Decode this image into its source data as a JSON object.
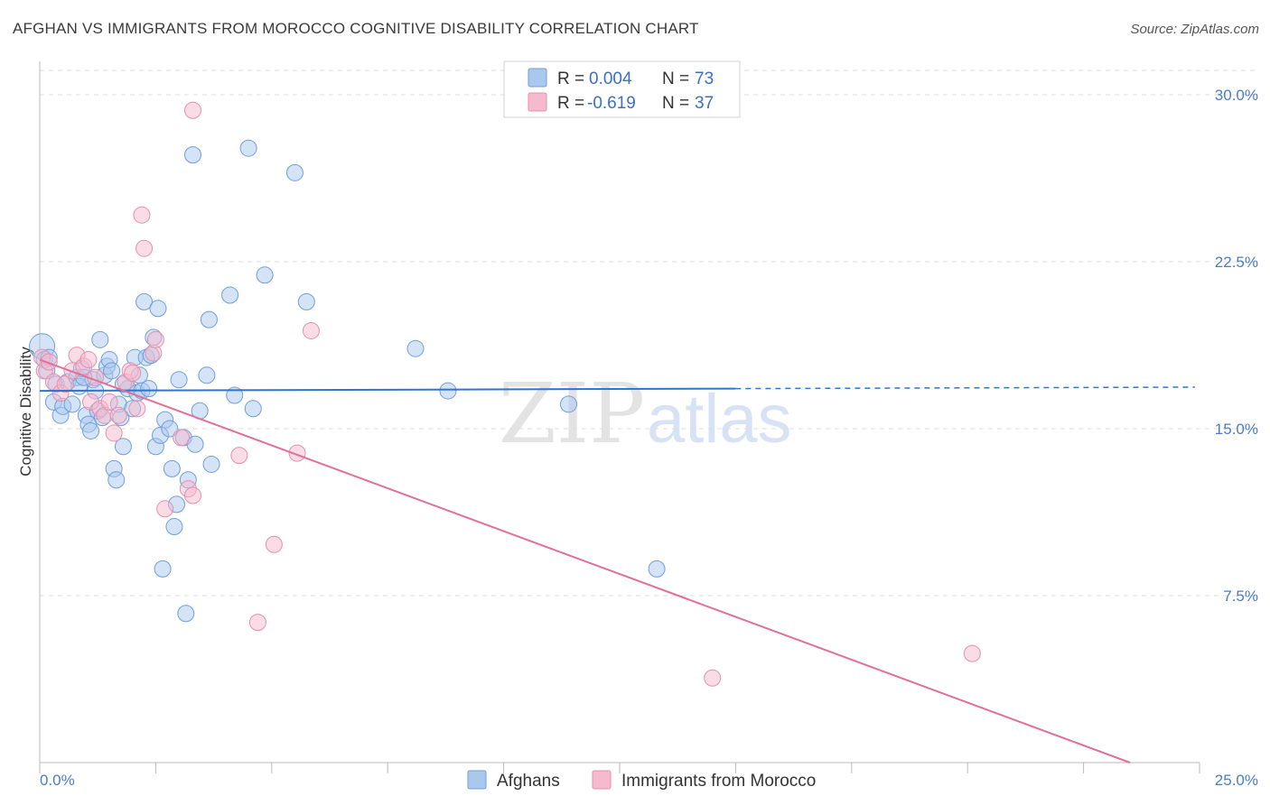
{
  "title": "AFGHAN VS IMMIGRANTS FROM MOROCCO COGNITIVE DISABILITY CORRELATION CHART",
  "source": "Source: ZipAtlas.com",
  "watermark": {
    "zip": "ZIP",
    "atlas": "atlas"
  },
  "colors": {
    "afghans_fill": "#aac8ee",
    "afghans_stroke": "#6f9fd8",
    "afghans_line": "#2f74cf",
    "morocco_fill": "#f6b9cd",
    "morocco_stroke": "#e58fad",
    "morocco_line": "#e0709a",
    "grid": "#dddddd",
    "tick_text": "#4a7cc9"
  },
  "legend": {
    "rows": [
      {
        "r_label": "R = ",
        "r_value": "0.004",
        "n_label": "N = ",
        "n_value": "73"
      },
      {
        "r_label": "R = ",
        "r_value": "-0.619",
        "n_label": "N = ",
        "n_value": "37"
      }
    ]
  },
  "chart_data": {
    "type": "scatter",
    "title": "AFGHAN VS IMMIGRANTS FROM MOROCCO COGNITIVE DISABILITY CORRELATION CHART",
    "xlabel": "",
    "ylabel": "Cognitive Disability",
    "xlim": [
      0,
      25
    ],
    "ylim": [
      0,
      31.5
    ],
    "x_tick_labels": [
      "0.0%",
      "25.0%"
    ],
    "y_ticks": [
      7.5,
      15.0,
      22.5,
      30.0
    ],
    "y_tick_labels": [
      "7.5%",
      "15.0%",
      "22.5%",
      "30.0%"
    ],
    "series": [
      {
        "name": "Afghans",
        "r": 0.004,
        "n": 73,
        "trend": {
          "x0": 0,
          "y0": 16.7,
          "x1": 15.0,
          "y1": 16.8,
          "dash_to_x": 24.9
        },
        "points": [
          [
            0.05,
            18.7
          ],
          [
            0.1,
            18.1
          ],
          [
            0.15,
            17.6
          ],
          [
            0.2,
            18.2
          ],
          [
            0.3,
            16.2
          ],
          [
            0.35,
            17.0
          ],
          [
            0.45,
            15.6
          ],
          [
            0.5,
            16.0
          ],
          [
            0.6,
            17.1
          ],
          [
            0.7,
            16.1
          ],
          [
            0.8,
            17.3
          ],
          [
            0.85,
            16.9
          ],
          [
            0.9,
            17.7
          ],
          [
            1.0,
            15.6
          ],
          [
            1.05,
            15.2
          ],
          [
            1.1,
            14.9
          ],
          [
            1.15,
            17.2
          ],
          [
            1.2,
            16.7
          ],
          [
            1.25,
            15.8
          ],
          [
            1.3,
            19.0
          ],
          [
            1.35,
            15.5
          ],
          [
            1.4,
            17.4
          ],
          [
            1.45,
            17.8
          ],
          [
            1.5,
            18.1
          ],
          [
            1.55,
            17.6
          ],
          [
            1.6,
            13.2
          ],
          [
            1.65,
            12.7
          ],
          [
            1.7,
            16.1
          ],
          [
            1.75,
            15.5
          ],
          [
            1.8,
            14.2
          ],
          [
            1.9,
            16.8
          ],
          [
            2.0,
            15.9
          ],
          [
            2.05,
            18.2
          ],
          [
            2.1,
            16.6
          ],
          [
            2.15,
            17.4
          ],
          [
            2.2,
            16.7
          ],
          [
            2.25,
            20.7
          ],
          [
            2.3,
            18.2
          ],
          [
            2.35,
            16.8
          ],
          [
            2.4,
            18.3
          ],
          [
            2.45,
            19.1
          ],
          [
            2.5,
            14.2
          ],
          [
            2.55,
            20.4
          ],
          [
            2.6,
            14.7
          ],
          [
            2.65,
            8.7
          ],
          [
            2.7,
            15.4
          ],
          [
            2.8,
            15.0
          ],
          [
            2.85,
            13.2
          ],
          [
            2.9,
            10.6
          ],
          [
            2.95,
            11.6
          ],
          [
            3.0,
            17.2
          ],
          [
            3.1,
            14.6
          ],
          [
            3.15,
            6.7
          ],
          [
            3.2,
            12.7
          ],
          [
            3.3,
            27.3
          ],
          [
            3.35,
            14.3
          ],
          [
            3.45,
            15.8
          ],
          [
            3.6,
            17.4
          ],
          [
            3.65,
            19.9
          ],
          [
            3.7,
            13.4
          ],
          [
            4.1,
            21.0
          ],
          [
            4.2,
            16.5
          ],
          [
            4.5,
            27.6
          ],
          [
            4.6,
            15.9
          ],
          [
            4.85,
            21.9
          ],
          [
            5.5,
            26.5
          ],
          [
            5.75,
            20.7
          ],
          [
            8.1,
            18.6
          ],
          [
            8.8,
            16.7
          ],
          [
            11.4,
            16.1
          ],
          [
            13.3,
            8.7
          ],
          [
            1.8,
            17.0
          ],
          [
            0.95,
            17.3
          ]
        ]
      },
      {
        "name": "Immigrants from Morocco",
        "r": -0.619,
        "n": 37,
        "trend": {
          "x0": 0,
          "y0": 18.1,
          "x1": 23.5,
          "y1": 0.0
        },
        "points": [
          [
            0.05,
            18.2
          ],
          [
            0.1,
            17.6
          ],
          [
            0.2,
            18.0
          ],
          [
            0.3,
            17.1
          ],
          [
            0.45,
            16.6
          ],
          [
            0.55,
            17.0
          ],
          [
            0.7,
            17.6
          ],
          [
            0.8,
            18.3
          ],
          [
            0.95,
            17.8
          ],
          [
            1.05,
            18.1
          ],
          [
            1.1,
            16.2
          ],
          [
            1.2,
            17.3
          ],
          [
            1.3,
            15.9
          ],
          [
            1.4,
            15.6
          ],
          [
            1.5,
            16.2
          ],
          [
            1.6,
            14.8
          ],
          [
            1.7,
            15.6
          ],
          [
            1.85,
            17.1
          ],
          [
            1.95,
            17.6
          ],
          [
            2.1,
            15.9
          ],
          [
            2.2,
            24.6
          ],
          [
            2.25,
            23.1
          ],
          [
            2.45,
            18.4
          ],
          [
            2.5,
            19.0
          ],
          [
            2.7,
            11.4
          ],
          [
            3.05,
            14.6
          ],
          [
            3.2,
            12.3
          ],
          [
            3.3,
            12.0
          ],
          [
            3.3,
            29.3
          ],
          [
            4.3,
            13.8
          ],
          [
            4.7,
            6.3
          ],
          [
            5.05,
            9.8
          ],
          [
            5.55,
            13.9
          ],
          [
            5.85,
            19.4
          ],
          [
            14.5,
            3.8
          ],
          [
            20.1,
            4.9
          ],
          [
            2.0,
            17.5
          ]
        ]
      }
    ]
  },
  "bottom_legend": [
    {
      "label": "Afghans"
    },
    {
      "label": "Immigrants from Morocco"
    }
  ]
}
